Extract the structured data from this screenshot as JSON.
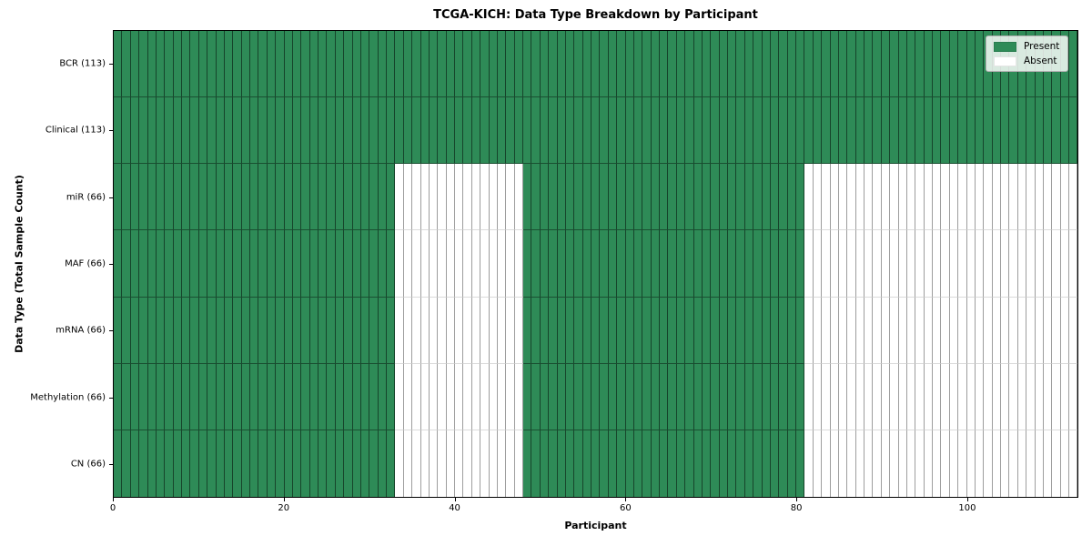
{
  "chart_data": {
    "type": "heatmap",
    "title": "TCGA-KICH: Data Type Breakdown by Participant",
    "xlabel": "Participant",
    "ylabel": "Data Type (Total Sample Count)",
    "n_participants": 113,
    "x_ticks": [
      0,
      20,
      40,
      60,
      80,
      100
    ],
    "legend_position": "upper right",
    "grid": true,
    "colors": {
      "present": "#2e8b57",
      "absent": "#ffffff"
    },
    "legend": [
      {
        "label": "Present",
        "color": "#2e8b57"
      },
      {
        "label": "Absent",
        "color": "#ffffff"
      }
    ],
    "rows": [
      {
        "label": "BCR (113)",
        "data_type": "BCR",
        "total_samples": 113,
        "present_ranges": [
          [
            0,
            113
          ]
        ]
      },
      {
        "label": "Clinical (113)",
        "data_type": "Clinical",
        "total_samples": 113,
        "present_ranges": [
          [
            0,
            113
          ]
        ]
      },
      {
        "label": "miR (66)",
        "data_type": "miR",
        "total_samples": 66,
        "present_ranges": [
          [
            0,
            33
          ],
          [
            48,
            81
          ]
        ]
      },
      {
        "label": "MAF (66)",
        "data_type": "MAF",
        "total_samples": 66,
        "present_ranges": [
          [
            0,
            33
          ],
          [
            48,
            81
          ]
        ]
      },
      {
        "label": "mRNA (66)",
        "data_type": "mRNA",
        "total_samples": 66,
        "present_ranges": [
          [
            0,
            33
          ],
          [
            48,
            81
          ]
        ]
      },
      {
        "label": "Methylation (66)",
        "data_type": "Methylation",
        "total_samples": 66,
        "present_ranges": [
          [
            0,
            33
          ],
          [
            48,
            81
          ]
        ]
      },
      {
        "label": "CN (66)",
        "data_type": "CN",
        "total_samples": 66,
        "present_ranges": [
          [
            0,
            33
          ],
          [
            48,
            81
          ]
        ]
      }
    ]
  }
}
